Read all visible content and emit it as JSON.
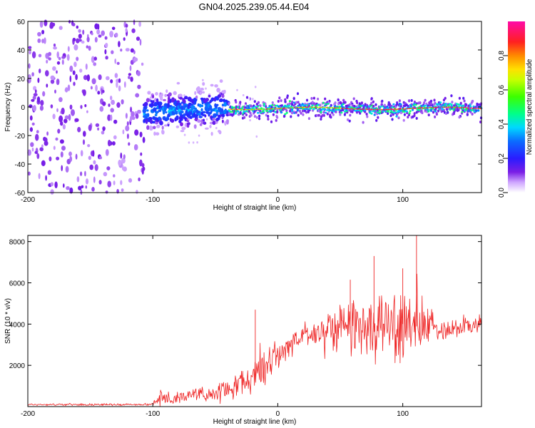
{
  "title": "GN04.2025.239.05.44.E04",
  "chart_data": [
    {
      "type": "heatmap",
      "name": "spectrogram",
      "xlabel": "Height of straight line (km)",
      "ylabel": "Frequency (Hz)",
      "xlim": [
        -200,
        163
      ],
      "ylim": [
        -60,
        60
      ],
      "xticks": [
        -200,
        -100,
        0,
        100
      ],
      "yticks": [
        -60,
        -40,
        -20,
        0,
        20,
        40,
        60
      ],
      "colorbar": {
        "label": "Normalized spectral amplitude",
        "ticks": [
          0.0,
          0.2,
          0.4,
          0.6,
          0.8
        ],
        "range": [
          0,
          1
        ]
      },
      "regions": [
        {
          "description": "noise",
          "x_range": [
            -200,
            -107
          ],
          "freq_range": [
            -60,
            60
          ],
          "amplitude": [
            0.0,
            0.1
          ]
        },
        {
          "description": "onset band",
          "x_range": [
            -107,
            -40
          ],
          "freq_range": [
            -20,
            12
          ],
          "amplitude": [
            0.05,
            0.35
          ]
        },
        {
          "description": "echo line",
          "x_range": [
            -40,
            163
          ],
          "freq_center": -1,
          "freq_halfwidth": 5,
          "amplitude_peak": 0.95
        }
      ]
    },
    {
      "type": "line",
      "name": "snr",
      "xlabel": "Height of straight line (km)",
      "ylabel": "SNR (10 * v/v)",
      "xlim": [
        -200,
        163
      ],
      "ylim": [
        0,
        8300
      ],
      "xticks": [
        -200,
        -100,
        0,
        100
      ],
      "yticks": [
        2000,
        4000,
        6000,
        8000
      ],
      "color": "#ee2222",
      "envelope": {
        "x": [
          -200,
          -110,
          -100,
          -95,
          -80,
          -60,
          -40,
          -20,
          -10,
          0,
          10,
          20,
          30,
          40,
          50,
          60,
          70,
          80,
          90,
          100,
          110,
          120,
          130,
          140,
          150,
          163
        ],
        "mean": [
          100,
          100,
          120,
          450,
          450,
          600,
          800,
          1400,
          2000,
          2500,
          3000,
          3400,
          3600,
          3800,
          3900,
          4000,
          4000,
          4000,
          4000,
          4000,
          3900,
          3800,
          3800,
          3800,
          3900,
          4000
        ],
        "spread": [
          60,
          60,
          80,
          400,
          300,
          400,
          550,
          900,
          1100,
          900,
          700,
          700,
          900,
          1200,
          1500,
          1700,
          1800,
          1900,
          2000,
          2000,
          1800,
          1200,
          700,
          600,
          600,
          500
        ]
      },
      "spikes": [
        {
          "x": -18,
          "y": 4700
        },
        {
          "x": 58,
          "y": 6150
        },
        {
          "x": 77,
          "y": 7300
        },
        {
          "x": 100,
          "y": 6700
        },
        {
          "x": 111,
          "y": 8300
        }
      ]
    }
  ]
}
